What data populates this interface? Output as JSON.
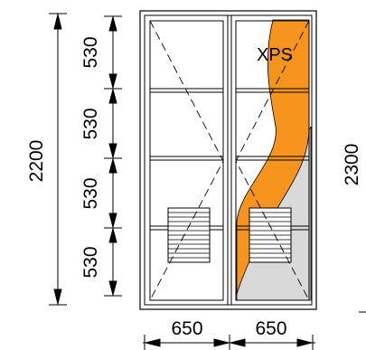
{
  "overall_height_left": "2200",
  "overall_height_right": "2300",
  "row_heights": [
    "530",
    "530",
    "530",
    "530"
  ],
  "column_widths": [
    "650",
    "650"
  ],
  "insulation_label": "XPS",
  "colors": {
    "insulation": "#f7941d",
    "section_fill": "#d9d9d9",
    "line": "#000000"
  }
}
